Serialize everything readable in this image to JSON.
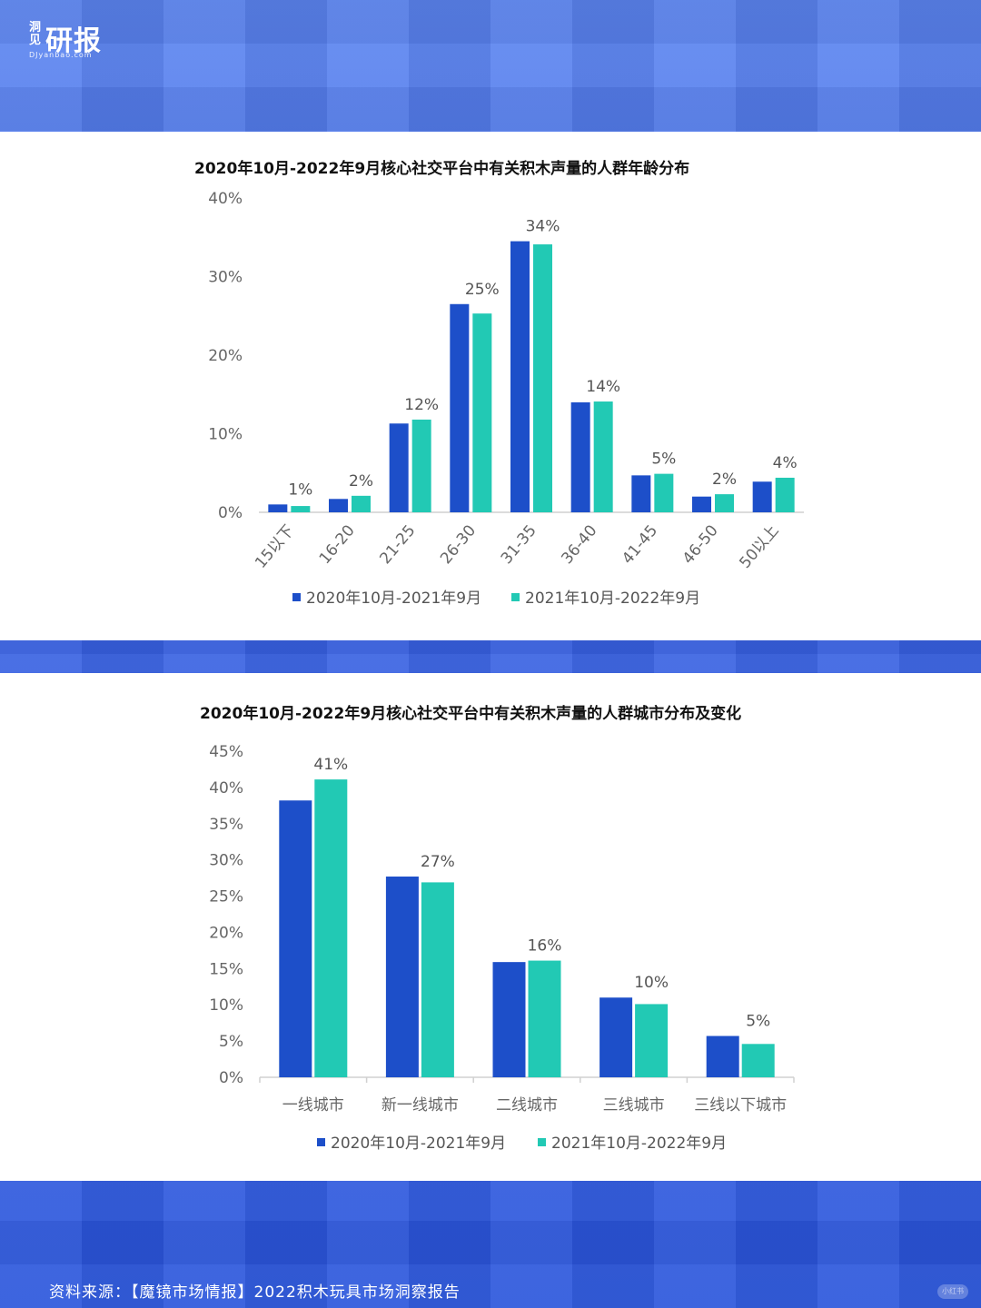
{
  "logo": {
    "small": "洞见",
    "main": "研报",
    "sub": "DJyanbao.com"
  },
  "footer": {
    "source": "资料来源：【魔镜市场情报】2022积木玩具市场洞察报告",
    "watermark": "小红书"
  },
  "colors": {
    "series1": "#1d4fc9",
    "series2": "#22c9b4"
  },
  "chart_data": [
    {
      "type": "bar",
      "title": "2020年10月-2022年9月核心社交平台中有关积木声量的人群年龄分布",
      "categories": [
        "15以下",
        "16-20",
        "21-25",
        "26-30",
        "31-35",
        "36-40",
        "41-45",
        "46-50",
        "50以上"
      ],
      "series": [
        {
          "name": "2020年10月-2021年9月",
          "values": [
            1,
            1.7,
            11.3,
            26.5,
            34.5,
            14,
            4.7,
            2,
            3.9
          ]
        },
        {
          "name": "2021年10月-2022年9月",
          "values": [
            0.8,
            2.1,
            11.8,
            25.3,
            34.1,
            14.1,
            4.9,
            2.3,
            4.4
          ]
        }
      ],
      "data_labels": [
        "1%",
        "2%",
        "12%",
        "25%",
        "34%",
        "14%",
        "5%",
        "2%",
        "4%"
      ],
      "yticks": [
        "0%",
        "10%",
        "20%",
        "30%",
        "40%"
      ],
      "ylim": [
        0,
        40
      ],
      "xlabel": "",
      "ylabel": "",
      "grid": false,
      "legend": "bottom"
    },
    {
      "type": "bar",
      "title": "2020年10月-2022年9月核心社交平台中有关积木声量的人群城市分布及变化",
      "categories": [
        "一线城市",
        "新一线城市",
        "二线城市",
        "三线城市",
        "三线以下城市"
      ],
      "series": [
        {
          "name": "2020年10月-2021年9月",
          "values": [
            38.2,
            27.7,
            15.9,
            11,
            5.7
          ]
        },
        {
          "name": "2021年10月-2022年9月",
          "values": [
            41.1,
            26.9,
            16.1,
            10.1,
            4.6
          ]
        }
      ],
      "data_labels": [
        "41%",
        "27%",
        "16%",
        "10%",
        "5%"
      ],
      "yticks": [
        "0%",
        "5%",
        "10%",
        "15%",
        "20%",
        "25%",
        "30%",
        "35%",
        "40%",
        "45%"
      ],
      "ylim": [
        0,
        45
      ],
      "xlabel": "",
      "ylabel": "",
      "grid": false,
      "legend": "bottom"
    }
  ]
}
